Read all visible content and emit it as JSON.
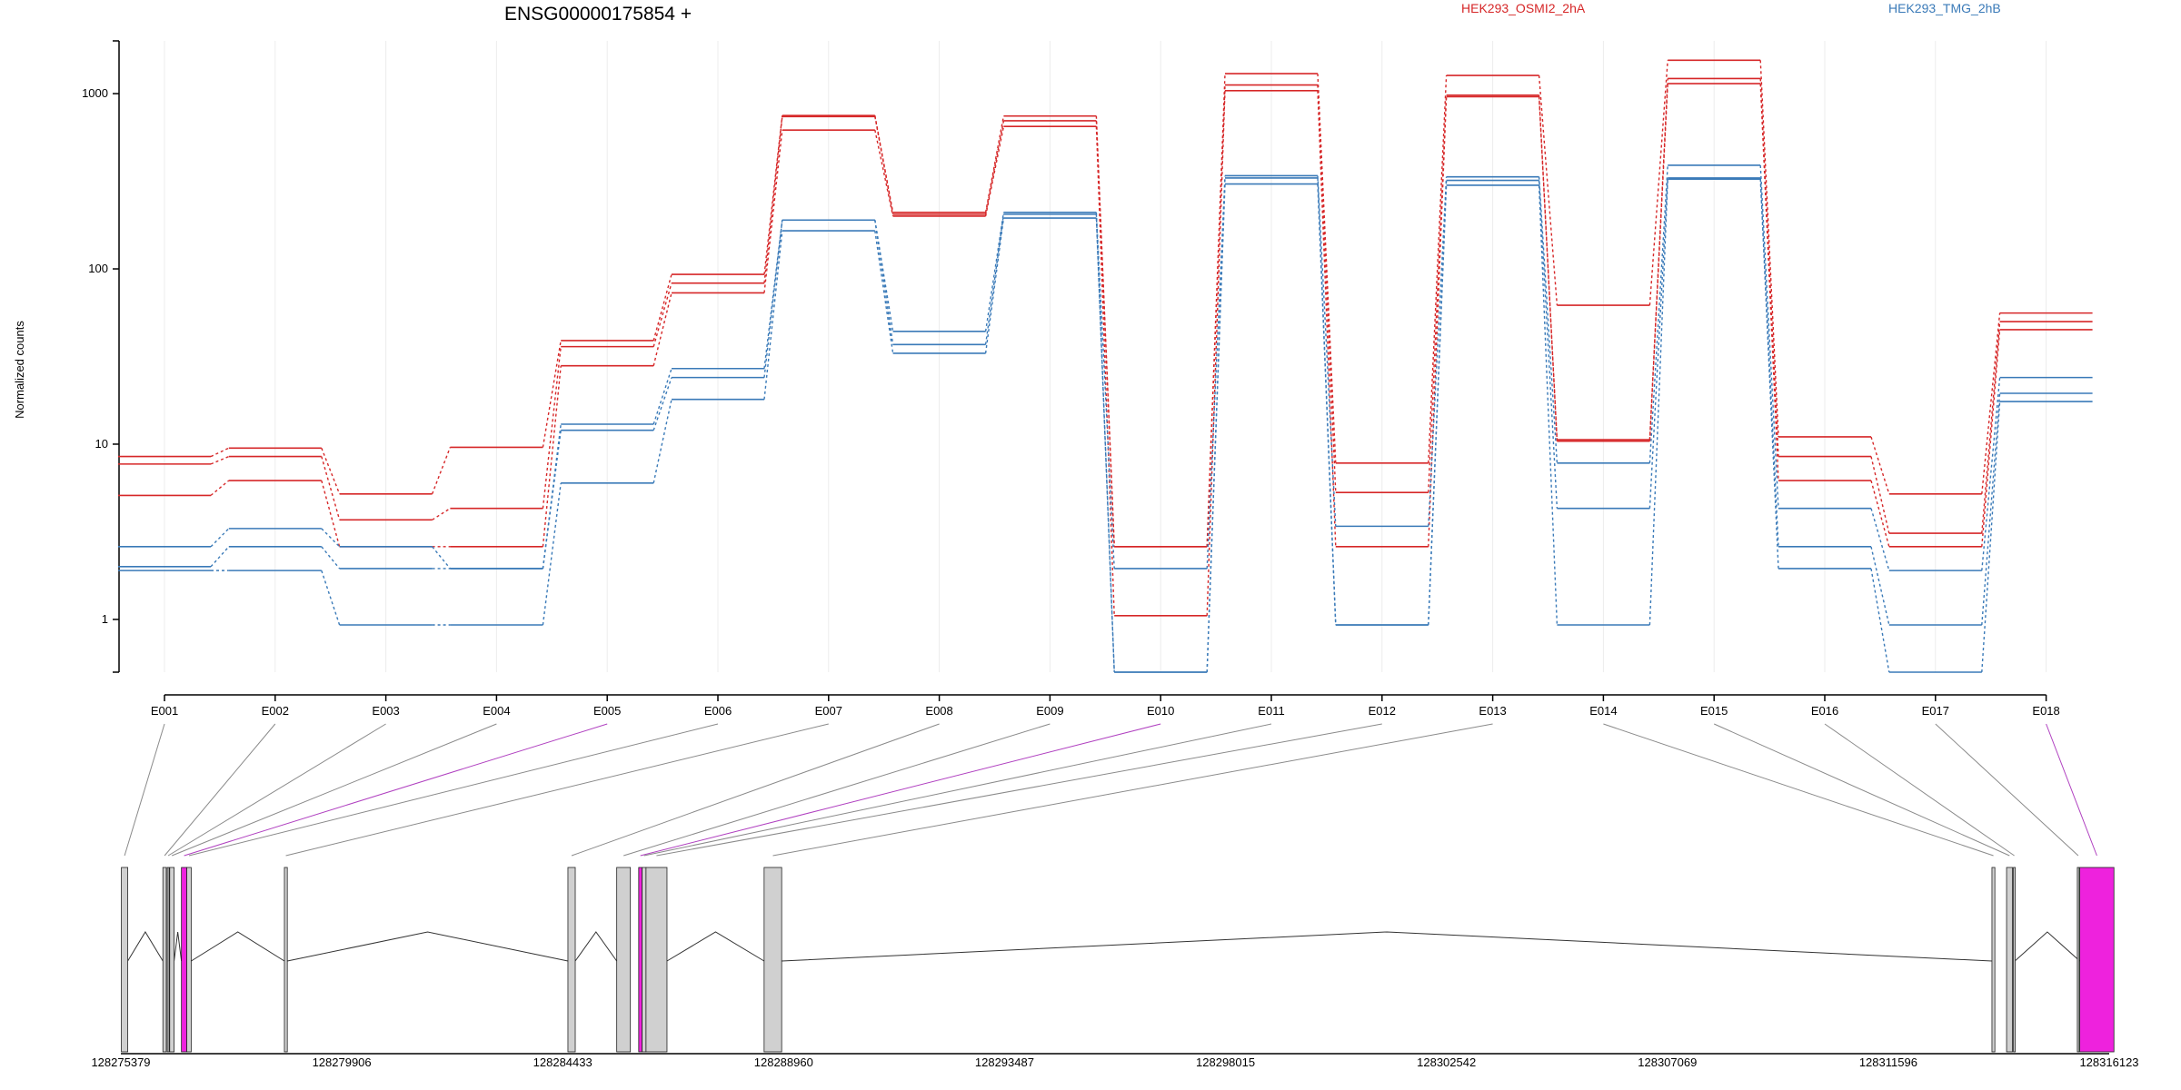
{
  "chart_data": {
    "type": "line",
    "title": "ENSG00000175854 +",
    "ylabel": "Normalized counts",
    "xlabel": "",
    "y_scale": "log",
    "ylim": [
      0.5,
      2000
    ],
    "y_ticks": [
      1,
      10,
      100,
      1000
    ],
    "y_tick_labels": [
      "1",
      "10",
      "100",
      "1000"
    ],
    "grid": true,
    "legend_placement": "top",
    "colors": {
      "HEK293_OSMI2_2hA": "#d62728",
      "HEK293_TMG_2hB": "#3a7ab8",
      "highlight_exon": "#ee22dd",
      "exon": "#d0d0d0"
    },
    "categories": [
      "E001",
      "E002",
      "E003",
      "E004",
      "E005",
      "E006",
      "E007",
      "E008",
      "E009",
      "E010",
      "E011",
      "E012",
      "E013",
      "E014",
      "E015",
      "E016",
      "E017",
      "E018"
    ],
    "series": [
      {
        "name": "HEK293_OSMI2_2hA",
        "group": "HEK293_OSMI2_2hA",
        "values": [
          8.5,
          9.5,
          5.2,
          9.6,
          39,
          93,
          750,
          210,
          745,
          2.6,
          1300,
          7.8,
          1270,
          62,
          1550,
          11,
          5.2,
          56
        ]
      },
      {
        "name": "",
        "group": "HEK293_OSMI2_2hA",
        "values": [
          7.7,
          8.5,
          3.7,
          4.3,
          36,
          83,
          740,
          205,
          700,
          2.6,
          1120,
          5.3,
          980,
          10.6,
          1220,
          8.5,
          3.1,
          50
        ]
      },
      {
        "name": "",
        "group": "HEK293_OSMI2_2hA",
        "values": [
          5.1,
          6.2,
          2.6,
          2.6,
          28,
          73,
          620,
          200,
          650,
          1.05,
          1040,
          2.6,
          960,
          10.4,
          1140,
          6.2,
          2.6,
          45
        ]
      },
      {
        "name": "",
        "group": "HEK293_TMG_2hB",
        "values": [
          2.6,
          3.3,
          2.6,
          1.95,
          13,
          27,
          190,
          44,
          210,
          1.95,
          340,
          3.4,
          335,
          7.8,
          390,
          4.3,
          1.9,
          24
        ]
      },
      {
        "name": "",
        "group": "HEK293_TMG_2hB",
        "values": [
          2.0,
          2.6,
          1.95,
          1.95,
          12,
          24,
          190,
          37,
          205,
          0.5,
          330,
          0.93,
          320,
          4.3,
          330,
          2.6,
          0.93,
          19.5
        ]
      },
      {
        "name": "",
        "group": "HEK293_TMG_2hB",
        "values": [
          1.9,
          1.9,
          0.93,
          0.93,
          6,
          18,
          165,
          33,
          195,
          0.5,
          305,
          0.93,
          300,
          0.93,
          325,
          1.95,
          0.5,
          17.5
        ]
      }
    ],
    "genomic_axis": {
      "ticks": [
        "128275379",
        "128279906",
        "128284433",
        "128288960",
        "128293487",
        "128298015",
        "128302542",
        "128307069",
        "128311596",
        "128316123"
      ],
      "tick_values": [
        128275379,
        128279906,
        128284433,
        128288960,
        128293487,
        128298015,
        128302542,
        128307069,
        128311596,
        128316123
      ],
      "range": [
        128275379,
        128316123
      ]
    },
    "exons": [
      {
        "id": "E001",
        "start": 128275390,
        "end": 128275520,
        "highlight": false
      },
      {
        "id": "E002",
        "start": 128276240,
        "end": 128276310,
        "highlight": false
      },
      {
        "id": "E003",
        "start": 128276330,
        "end": 128276360,
        "highlight": false
      },
      {
        "id": "E004",
        "start": 128276380,
        "end": 128276470,
        "highlight": false
      },
      {
        "id": "E005",
        "start": 128276620,
        "end": 128276730,
        "highlight": true
      },
      {
        "id": "E006",
        "start": 128276730,
        "end": 128276820,
        "highlight": false
      },
      {
        "id": "E007",
        "start": 128278730,
        "end": 128278790,
        "highlight": false
      },
      {
        "id": "E008",
        "start": 128284540,
        "end": 128284690,
        "highlight": false
      },
      {
        "id": "E009",
        "start": 128285540,
        "end": 128285820,
        "highlight": false
      },
      {
        "id": "E010",
        "start": 128285990,
        "end": 128286060,
        "highlight": true
      },
      {
        "id": "E011",
        "start": 128286060,
        "end": 128286140,
        "highlight": false
      },
      {
        "id": "E012",
        "start": 128286140,
        "end": 128286570,
        "highlight": false
      },
      {
        "id": "E013",
        "start": 128288560,
        "end": 128288920,
        "highlight": false
      },
      {
        "id": "E014",
        "start": 128313720,
        "end": 128313780,
        "highlight": false
      },
      {
        "id": "E015",
        "start": 128314020,
        "end": 128314140,
        "highlight": false
      },
      {
        "id": "E016",
        "start": 128314160,
        "end": 128314190,
        "highlight": false
      },
      {
        "id": "E017",
        "start": 128315470,
        "end": 128315500,
        "highlight": false
      },
      {
        "id": "E018",
        "start": 128315520,
        "end": 128316220,
        "highlight": true
      }
    ],
    "introns": [
      [
        128275520,
        128276240
      ],
      [
        128276470,
        128276620
      ],
      [
        128276820,
        128278730
      ],
      [
        128278790,
        128284540
      ],
      [
        128284690,
        128285540
      ],
      [
        128286140,
        128286560
      ],
      [
        128286570,
        128288560
      ],
      [
        128288920,
        128313720
      ],
      [
        128314190,
        128315520
      ]
    ]
  },
  "legend": {
    "series_a": "HEK293_OSMI2_2hA",
    "series_b": "HEK293_TMG_2hB"
  }
}
